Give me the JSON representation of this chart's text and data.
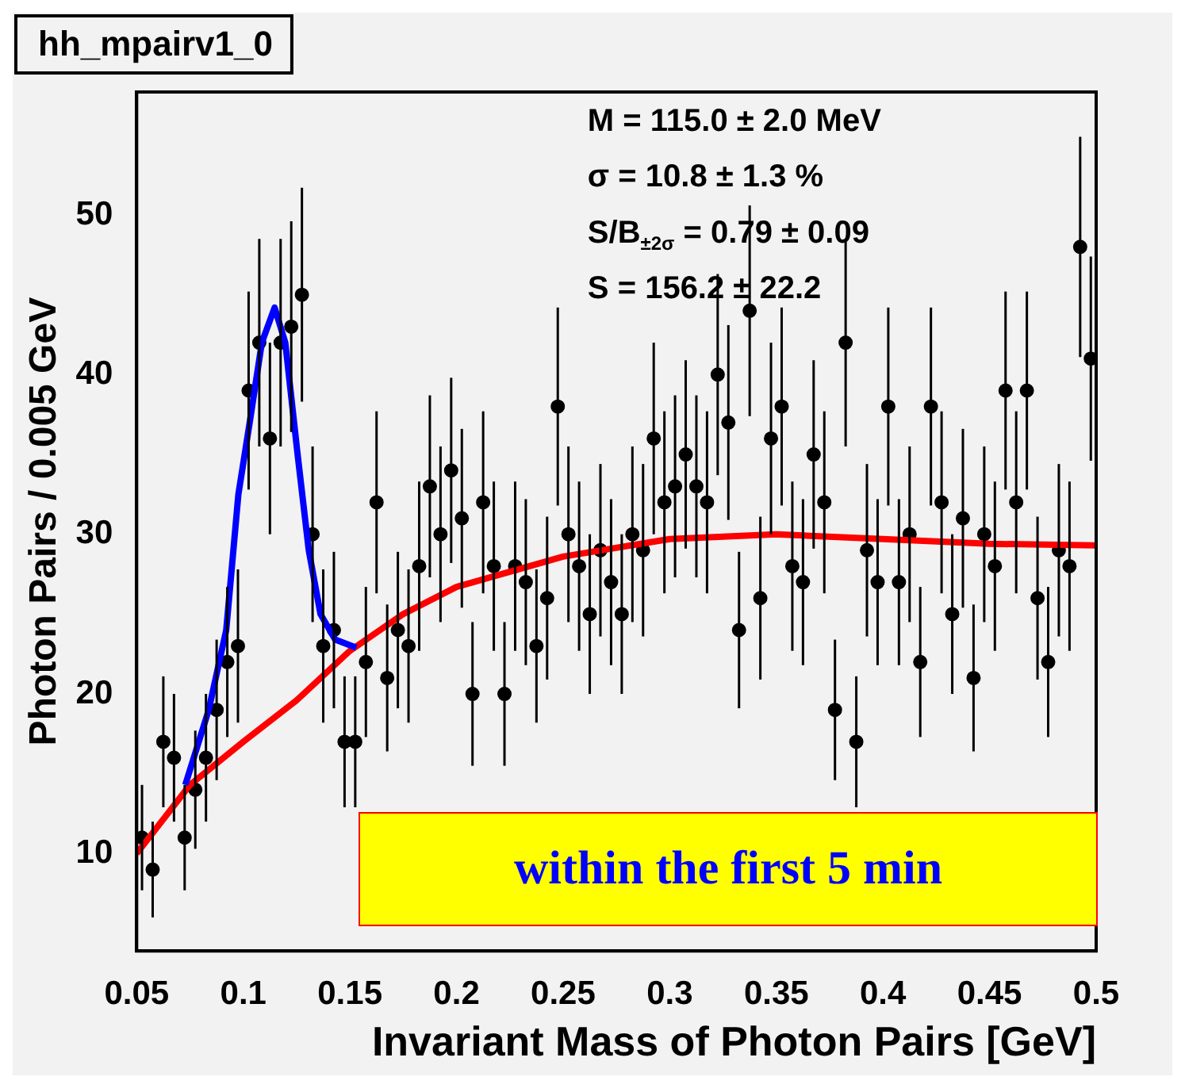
{
  "chart_data": {
    "type": "scatter",
    "title": "hh_mpairv1_0",
    "xlabel": "Invariant Mass of Photon Pairs [GeV]",
    "ylabel": "Photon Pairs / 0.005 GeV",
    "annotations": [
      "M = 115.0 ± 2.0 MeV",
      "σ = 10.8 ± 1.3 %",
      "S/B$_{±2σ}$ = 0.79 ± 0.09",
      "S = 156.2 ± 22.2",
      "within the first 5 min"
    ],
    "xlim": [
      0.05,
      0.5
    ],
    "xticks": [
      0.05,
      0.1,
      0.15,
      0.2,
      0.25,
      0.3,
      0.35,
      0.4,
      0.45,
      0.5
    ],
    "ylim": [
      3.9,
      57.7
    ],
    "yticks": [
      10,
      20,
      30,
      40,
      50
    ],
    "grid": false,
    "legend": false,
    "marker": "circle",
    "series": [
      {
        "type": "scatter",
        "color": "#000000",
        "x": [
          0.0525,
          0.0575,
          0.0625,
          0.0675,
          0.0725,
          0.0775,
          0.0825,
          0.0875,
          0.0925,
          0.0975,
          0.1025,
          0.1075,
          0.1125,
          0.1175,
          0.1225,
          0.1275,
          0.1325,
          0.1375,
          0.1425,
          0.1475,
          0.1525,
          0.1575,
          0.1625,
          0.1675,
          0.1725,
          0.1775,
          0.1825,
          0.1875,
          0.1925,
          0.1975,
          0.2025,
          0.2075,
          0.2125,
          0.2175,
          0.2225,
          0.2275,
          0.2325,
          0.2375,
          0.2425,
          0.2475,
          0.2525,
          0.2575,
          0.2625,
          0.2675,
          0.2725,
          0.2775,
          0.2825,
          0.2875,
          0.2925,
          0.2975,
          0.3025,
          0.3075,
          0.3125,
          0.3175,
          0.3225,
          0.3275,
          0.3325,
          0.3375,
          0.3425,
          0.3475,
          0.3525,
          0.3575,
          0.3625,
          0.3675,
          0.3725,
          0.3775,
          0.3825,
          0.3875,
          0.3925,
          0.3975,
          0.4025,
          0.4075,
          0.4125,
          0.4175,
          0.4225,
          0.4275,
          0.4325,
          0.4375,
          0.4425,
          0.4475,
          0.4525,
          0.4575,
          0.4625,
          0.4675,
          0.4725,
          0.4775,
          0.4825,
          0.4875,
          0.4925,
          0.4975
        ],
        "values": [
          11,
          9,
          17,
          16,
          11,
          14,
          16,
          19,
          22,
          23,
          39,
          42,
          36,
          42,
          43,
          45,
          30,
          23,
          24,
          17,
          17,
          22,
          32,
          21,
          24,
          23,
          28,
          33,
          30,
          34,
          31,
          20,
          32,
          28,
          20,
          28,
          27,
          23,
          26,
          38,
          30,
          28,
          25,
          29,
          27,
          25,
          30,
          29,
          36,
          32,
          33,
          35,
          33,
          32,
          40,
          37,
          24,
          44,
          26,
          36,
          38,
          28,
          27,
          35,
          32,
          19,
          42,
          17,
          29,
          27,
          38,
          27,
          30,
          22,
          38,
          32,
          25,
          31,
          21,
          30,
          28,
          39,
          32,
          39,
          26,
          22,
          29,
          28,
          48,
          41
        ],
        "errors": [
          3.3,
          3,
          4.1,
          4,
          3.3,
          3.7,
          4,
          4.4,
          4.7,
          4.8,
          6.2,
          6.5,
          6,
          6.5,
          6.6,
          6.7,
          5.5,
          4.8,
          4.9,
          4.1,
          4.1,
          4.7,
          5.7,
          4.6,
          4.9,
          4.8,
          5.3,
          5.7,
          5.5,
          5.8,
          5.6,
          4.5,
          5.7,
          5.3,
          4.5,
          5.3,
          5.2,
          4.8,
          5.1,
          6.2,
          5.5,
          5.3,
          5,
          5.4,
          5.2,
          5,
          5.5,
          5.4,
          6,
          5.7,
          5.7,
          5.9,
          5.7,
          5.7,
          6.3,
          6.1,
          4.9,
          6.6,
          5.1,
          6,
          6.2,
          5.3,
          5.2,
          5.9,
          5.7,
          4.4,
          6.5,
          4.1,
          5.4,
          5.2,
          6.2,
          5.2,
          5.5,
          4.7,
          6.2,
          5.7,
          5,
          5.6,
          4.6,
          5.5,
          5.3,
          6.2,
          5.7,
          6.2,
          5.1,
          4.7,
          5.4,
          5.3,
          6.9,
          6.4
        ]
      },
      {
        "type": "line",
        "color": "#0000ff",
        "marker": "none",
        "x": [
          0.0728,
          0.0838,
          0.092,
          0.0977,
          0.103,
          0.1087,
          0.1147,
          0.1197,
          0.1253,
          0.1307,
          0.1362,
          0.1431,
          0.153
        ],
        "values": [
          14.3,
          19,
          24,
          32.5,
          37,
          42,
          44.2,
          42,
          35.2,
          29,
          25,
          23.4,
          22.9
        ]
      },
      {
        "type": "line",
        "color": "#ff0000",
        "marker": "none",
        "x": [
          0.05,
          0.075,
          0.1,
          0.125,
          0.15,
          0.175,
          0.2,
          0.25,
          0.3,
          0.35,
          0.4,
          0.45,
          0.5
        ],
        "values": [
          10,
          14.3,
          17,
          19.6,
          22.7,
          25,
          26.7,
          28.6,
          29.7,
          30,
          29.7,
          29.4,
          29.3
        ]
      }
    ]
  }
}
